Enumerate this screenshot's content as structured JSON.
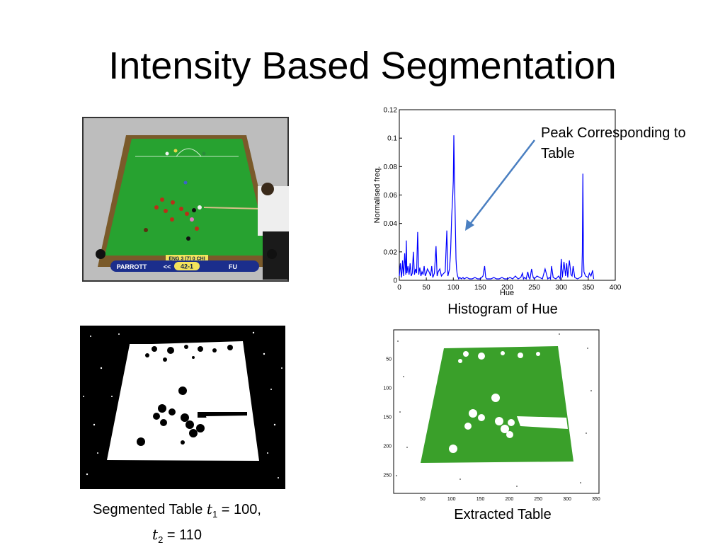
{
  "slide": {
    "title": "Intensity Based Segmentation"
  },
  "snooker_photo": {
    "scoreboard": {
      "left_player": "PARROTT",
      "right_player": "FU",
      "score": "42-1",
      "banner": "ENG 3 (7) 0 CHI",
      "arrows": "<<"
    }
  },
  "histogram": {
    "caption": "Histogram of Hue",
    "annotation": "Peak Corresponding to Table",
    "annotation_line1": "Peak Corresponding to",
    "annotation_line2": "Table",
    "line_color": "#0000ff",
    "arrow_color": "#4a7fc1"
  },
  "chart_data": {
    "type": "line",
    "xlabel": "Hue",
    "ylabel": "Normalised freq.",
    "xlim": [
      0,
      400
    ],
    "ylim": [
      0,
      0.12
    ],
    "xticks": [
      0,
      50,
      100,
      150,
      200,
      250,
      300,
      350,
      400
    ],
    "yticks": [
      0,
      0.02,
      0.04,
      0.06,
      0.08,
      0.1,
      0.12
    ],
    "ytick_labels": [
      "0",
      "0.02",
      "0.04",
      "0.06",
      "0.08",
      "0.1",
      "0.12"
    ],
    "series": [
      {
        "x": [
          0,
          2,
          4,
          5,
          6,
          8,
          10,
          12,
          13,
          14,
          16,
          18,
          19,
          20,
          22,
          24,
          26,
          28,
          30,
          32,
          34,
          36,
          38,
          40,
          42,
          44,
          46,
          48,
          50,
          52,
          55,
          58,
          60,
          62,
          65,
          68,
          70,
          72,
          75,
          78,
          80,
          85,
          88,
          90,
          93,
          95,
          97,
          99,
          100,
          101,
          102,
          103,
          104,
          105,
          106,
          107,
          108,
          110,
          112,
          115,
          118,
          120,
          125,
          130,
          135,
          140,
          145,
          150,
          155,
          158,
          160,
          162,
          165,
          170,
          175,
          180,
          185,
          190,
          195,
          200,
          205,
          210,
          215,
          220,
          225,
          228,
          230,
          232,
          235,
          238,
          240,
          242,
          245,
          248,
          250,
          255,
          260,
          265,
          270,
          275,
          278,
          280,
          282,
          285,
          290,
          295,
          298,
          300,
          302,
          305,
          308,
          310,
          312,
          315,
          318,
          320,
          322,
          325,
          330,
          335,
          338,
          339,
          340,
          341,
          342,
          345,
          350,
          352,
          355,
          358,
          360
        ],
        "y": [
          0.003,
          0.012,
          0.002,
          0.006,
          0.014,
          0.003,
          0.019,
          0.004,
          0.028,
          0.005,
          0.01,
          0.004,
          0.007,
          0.012,
          0.003,
          0.005,
          0.02,
          0.004,
          0.008,
          0.005,
          0.034,
          0.004,
          0.009,
          0.003,
          0.006,
          0.004,
          0.01,
          0.003,
          0.005,
          0.008,
          0.006,
          0.003,
          0.01,
          0.002,
          0.005,
          0.024,
          0.003,
          0.006,
          0.008,
          0.003,
          0.004,
          0.006,
          0.035,
          0.003,
          0.008,
          0.02,
          0.045,
          0.06,
          0.07,
          0.102,
          0.075,
          0.055,
          0.035,
          0.015,
          0.008,
          0.005,
          0.003,
          0.001,
          0.002,
          0.001,
          0.002,
          0.001,
          0.002,
          0.001,
          0.001,
          0.002,
          0.001,
          0.001,
          0.003,
          0.01,
          0.002,
          0.001,
          0.001,
          0.001,
          0.002,
          0.001,
          0.001,
          0.002,
          0.001,
          0.001,
          0.002,
          0.001,
          0.003,
          0.001,
          0.002,
          0.005,
          0.001,
          0.002,
          0.001,
          0.006,
          0.002,
          0.001,
          0.008,
          0.002,
          0.001,
          0.003,
          0.002,
          0.001,
          0.008,
          0.001,
          0.002,
          0.001,
          0.01,
          0.002,
          0.001,
          0.003,
          0.001,
          0.015,
          0.002,
          0.013,
          0.003,
          0.012,
          0.002,
          0.014,
          0.004,
          0.003,
          0.01,
          0.002,
          0.001,
          0.002,
          0.003,
          0.02,
          0.075,
          0.02,
          0.006,
          0.003,
          0.002,
          0.005,
          0.003,
          0.007,
          0.001
        ]
      }
    ]
  },
  "segmented": {
    "caption_prefix": "Segmented Table ",
    "t1_symbol": "t",
    "t1_sub": "1",
    "t1_value": " = 100,",
    "t2_symbol": "t",
    "t2_sub": "2",
    "t2_value": " = 110"
  },
  "extracted": {
    "caption": "Extracted Table",
    "xticks": [
      "50",
      "100",
      "150",
      "200",
      "250",
      "300",
      "350"
    ],
    "yticks": [
      "50",
      "100",
      "150",
      "200",
      "250"
    ],
    "table_color": "#3aa02a"
  }
}
